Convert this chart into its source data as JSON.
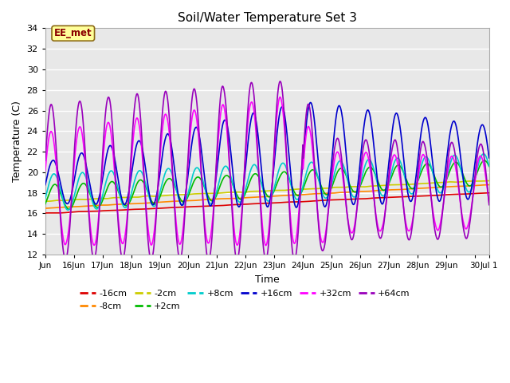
{
  "title": "Soil/Water Temperature Set 3",
  "xlabel": "Time",
  "ylabel": "Temperature (C)",
  "ylim": [
    12,
    34
  ],
  "yticks": [
    12,
    14,
    16,
    18,
    20,
    22,
    24,
    26,
    28,
    30,
    32,
    34
  ],
  "plot_bg_color": "#e8e8e8",
  "fig_bg_color": "#ffffff",
  "annotation_text": "EE_met",
  "annotation_bg": "#ffff99",
  "annotation_border": "#8B6914",
  "annotation_text_color": "#8B0000",
  "series": {
    "-16cm": {
      "color": "#dd0000",
      "lw": 1.2
    },
    "-8cm": {
      "color": "#ff8800",
      "lw": 1.2
    },
    "-2cm": {
      "color": "#cccc00",
      "lw": 1.2
    },
    "+2cm": {
      "color": "#00bb00",
      "lw": 1.2
    },
    "+8cm": {
      "color": "#00cccc",
      "lw": 1.2
    },
    "+16cm": {
      "color": "#0000cc",
      "lw": 1.2
    },
    "+32cm": {
      "color": "#ff00ff",
      "lw": 1.2
    },
    "+64cm": {
      "color": "#9900bb",
      "lw": 1.2
    }
  },
  "legend_order": [
    "-16cm",
    "-8cm",
    "-2cm",
    "+2cm",
    "+8cm",
    "+16cm",
    "+32cm",
    "+64cm"
  ],
  "x_tick_labels": [
    "Jun",
    "16Jun",
    "17Jun",
    "18Jun",
    "19Jun",
    "20Jun",
    "21Jun",
    "22Jun",
    "23Jun",
    "24Jun",
    "25Jun",
    "26Jun",
    "27Jun",
    "28Jun",
    "29Jun",
    "30",
    "Jul 1"
  ],
  "n_points": 1500
}
